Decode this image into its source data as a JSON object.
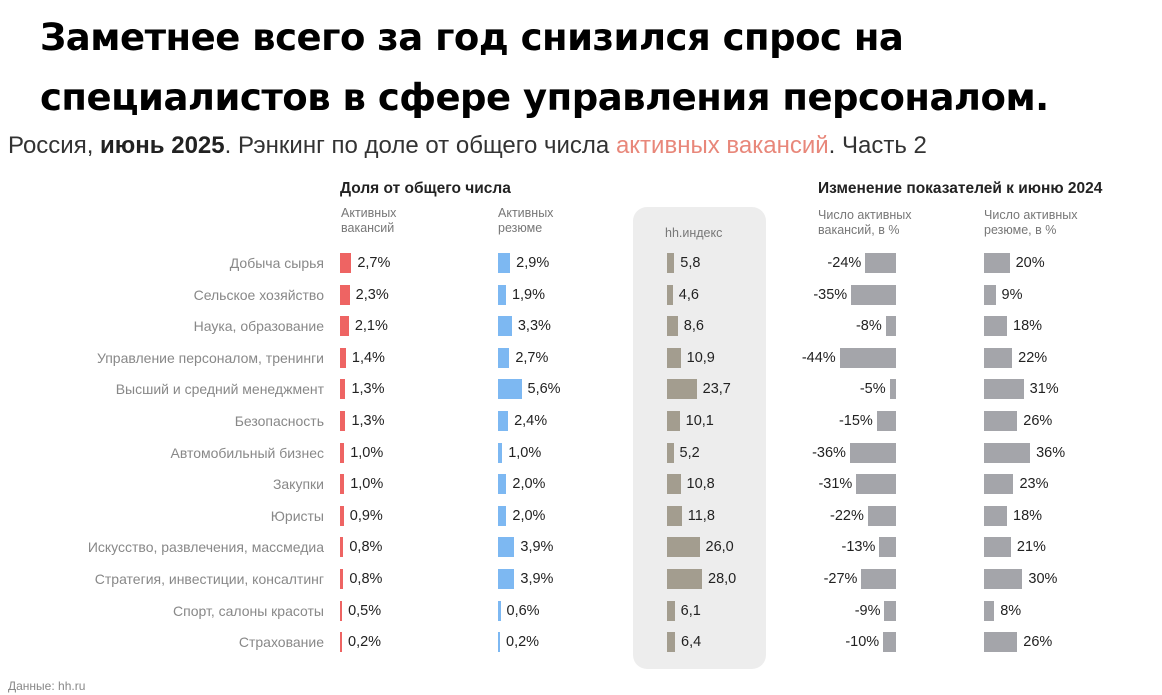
{
  "headline": "Заметнее всего за год снизился спрос на специалистов в сфере управления персоналом.",
  "subtitle": {
    "part1": "Россия, ",
    "bold": "июнь 2025",
    "part2": ". Рэнкинг по доле от общего числа ",
    "accent": "активных вакансий",
    "part3": ". Часть 2"
  },
  "group_headers": {
    "share": "Доля от общего числа",
    "change": "Изменение показателей к июню 2024"
  },
  "column_headers": {
    "vacancies": "Активных\nвакансий",
    "resumes": "Активных\nрезюме",
    "index": "hh.индекс",
    "vac_change": "Число активных\nвакансий, в %",
    "res_change": "Число активных\nрезюме, в %"
  },
  "source": "Данные: hh.ru",
  "colors": {
    "vacancies": "#ee6463",
    "resumes": "#7db8f2",
    "index": "#a39d8f",
    "change": "#a4a5aa",
    "accent": "#e8877a"
  },
  "chart_data": {
    "type": "bar",
    "categories": [
      "Добыча сырья",
      "Сельское хозяйство",
      "Наука, образование",
      "Управление персоналом, тренинги",
      "Высший и средний менеджмент",
      "Безопасность",
      "Автомобильный бизнес",
      "Закупки",
      "Юристы",
      "Искусство, развлечения, массмедиа",
      "Стратегия, инвестиции, консалтинг",
      "Спорт, салоны красоты",
      "Страхование"
    ],
    "series": [
      {
        "name": "Активных вакансий",
        "values": [
          2.7,
          2.3,
          2.1,
          1.4,
          1.3,
          1.3,
          1.0,
          1.0,
          0.9,
          0.8,
          0.8,
          0.5,
          0.2
        ],
        "labels": [
          "2,7%",
          "2,3%",
          "2,1%",
          "1,4%",
          "1,3%",
          "1,3%",
          "1,0%",
          "1,0%",
          "0,9%",
          "0,8%",
          "0,8%",
          "0,5%",
          "0,2%"
        ]
      },
      {
        "name": "Активных резюме",
        "values": [
          2.9,
          1.9,
          3.3,
          2.7,
          5.6,
          2.4,
          1.0,
          2.0,
          2.0,
          3.9,
          3.9,
          0.6,
          0.2
        ],
        "labels": [
          "2,9%",
          "1,9%",
          "3,3%",
          "2,7%",
          "5,6%",
          "2,4%",
          "1,0%",
          "2,0%",
          "2,0%",
          "3,9%",
          "3,9%",
          "0,6%",
          "0,2%"
        ]
      },
      {
        "name": "hh.индекс",
        "values": [
          5.8,
          4.6,
          8.6,
          10.9,
          23.7,
          10.1,
          5.2,
          10.8,
          11.8,
          26.0,
          28.0,
          6.1,
          6.4
        ],
        "labels": [
          "5,8",
          "4,6",
          "8,6",
          "10,9",
          "23,7",
          "10,1",
          "5,2",
          "10,8",
          "11,8",
          "26,0",
          "28,0",
          "6,1",
          "6,4"
        ]
      },
      {
        "name": "Число активных вакансий, в %",
        "values": [
          -24,
          -35,
          -8,
          -44,
          -5,
          -15,
          -36,
          -31,
          -22,
          -13,
          -27,
          -9,
          -10
        ],
        "labels": [
          "-24%",
          "-35%",
          "-8%",
          "-44%",
          "-5%",
          "-15%",
          "-36%",
          "-31%",
          "-22%",
          "-13%",
          "-27%",
          "-9%",
          "-10%"
        ]
      },
      {
        "name": "Число активных резюме, в %",
        "values": [
          20,
          9,
          18,
          22,
          31,
          26,
          36,
          23,
          18,
          21,
          30,
          8,
          26
        ],
        "labels": [
          "20%",
          "9%",
          "18%",
          "22%",
          "31%",
          "26%",
          "36%",
          "23%",
          "18%",
          "21%",
          "30%",
          "8%",
          "26%"
        ]
      }
    ]
  }
}
